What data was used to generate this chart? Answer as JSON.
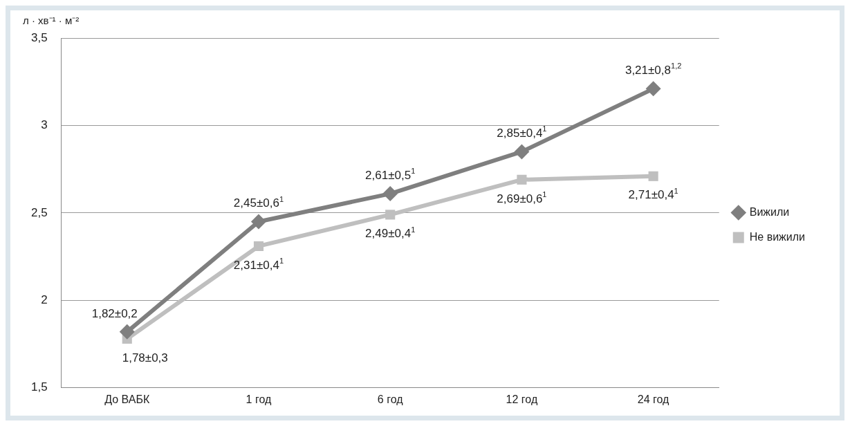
{
  "chart_data": {
    "type": "line",
    "ylabel": "л · хв⁻¹ · м⁻²",
    "categories": [
      "До ВАБК",
      "1 год",
      "6 год",
      "12 год",
      "24 год"
    ],
    "ylim": [
      1.5,
      3.5
    ],
    "yticks": [
      {
        "value": 1.5,
        "label": "1,5"
      },
      2,
      {
        "value": 2.5,
        "label": "2,5"
      },
      3,
      {
        "value": 3.5,
        "label": "3,5"
      }
    ],
    "grid": "y",
    "legend": "right",
    "line_style": "solid",
    "series": [
      {
        "name": "Вижили",
        "color": "#7f7f7f",
        "marker": "diamond",
        "values": [
          1.82,
          2.45,
          2.61,
          2.85,
          3.21
        ],
        "value_labels": [
          "1,82±0,2",
          "2,45±0,6$^{1}$",
          "2,61±0,5$^{1}$",
          "2,85±0,4$^{1}$",
          "3,21±0,8$^{1,2}$"
        ]
      },
      {
        "name": "Не вижили",
        "color": "#bfbfbf",
        "marker": "square",
        "values": [
          1.78,
          2.31,
          2.49,
          2.69,
          2.71
        ],
        "value_labels": [
          "1,78±0,3",
          "2,31±0,4$^{1}$",
          "2,49±0,4$^{1}$",
          "2,69±0,6$^{1}$",
          "2,71±0,4$^{1}$"
        ]
      }
    ]
  }
}
